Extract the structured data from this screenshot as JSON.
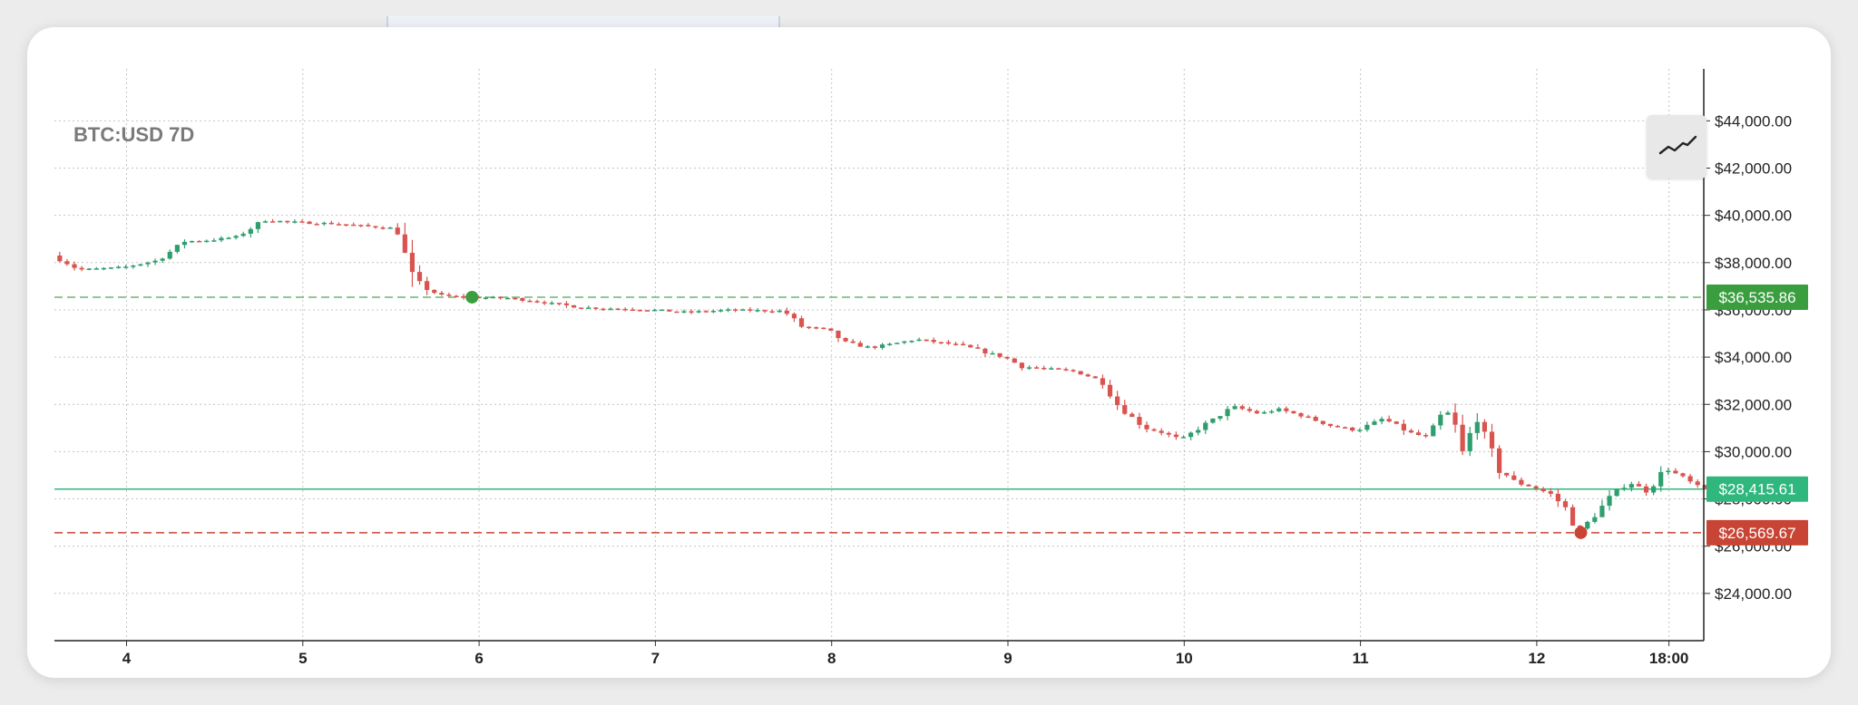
{
  "colors": {
    "up": "#2e9e6e",
    "down": "#d9534f",
    "current_line": "#2fb77e",
    "high_tag": "#3a9e3f",
    "current_tag": "#2fb77e",
    "low_tag": "#c84535"
  },
  "chart_type_button": {
    "icon": "line-chart-icon"
  },
  "chart_data": {
    "type": "candlestick",
    "title": "BTC:USD 7D",
    "x_ticks": [
      "4",
      "5",
      "6",
      "7",
      "8",
      "9",
      "10",
      "11",
      "12",
      "18:00"
    ],
    "y_ticks": [
      "$24,000.00",
      "$26,000.00",
      "$28,000.00",
      "$30,000.00",
      "$32,000.00",
      "$34,000.00",
      "$36,000.00",
      "$38,000.00",
      "$40,000.00",
      "$42,000.00",
      "$44,000.00"
    ],
    "ylim": [
      22000,
      46200
    ],
    "y_axis_side": "right",
    "grid": true,
    "reference_lines": [
      {
        "label": "$36,535.86",
        "value": 36535.86,
        "style": "dashed",
        "kind": "high"
      },
      {
        "label": "$28,415.61",
        "value": 28415.61,
        "style": "solid",
        "kind": "current"
      },
      {
        "label": "$26,569.67",
        "value": 26569.67,
        "style": "dashed",
        "kind": "low"
      }
    ],
    "markers": [
      {
        "day": 5.96,
        "value": 36535.86,
        "kind": "high"
      },
      {
        "day": 12.25,
        "value": 26569.67,
        "kind": "low"
      }
    ],
    "price_path": [
      [
        3.6,
        38300
      ],
      [
        3.75,
        37700
      ],
      [
        4.0,
        37800
      ],
      [
        4.2,
        38100
      ],
      [
        4.35,
        38900
      ],
      [
        4.5,
        38950
      ],
      [
        4.65,
        39100
      ],
      [
        4.8,
        39800
      ],
      [
        5.0,
        39700
      ],
      [
        5.2,
        39650
      ],
      [
        5.45,
        39500
      ],
      [
        5.55,
        39450
      ],
      [
        5.65,
        37200
      ],
      [
        5.8,
        36600
      ],
      [
        5.96,
        36535
      ],
      [
        6.2,
        36500
      ],
      [
        6.4,
        36300
      ],
      [
        6.6,
        36100
      ],
      [
        6.8,
        36050
      ],
      [
        7.0,
        36000
      ],
      [
        7.2,
        35900
      ],
      [
        7.45,
        36000
      ],
      [
        7.75,
        35950
      ],
      [
        7.85,
        35300
      ],
      [
        8.0,
        35150
      ],
      [
        8.1,
        34600
      ],
      [
        8.25,
        34400
      ],
      [
        8.5,
        34750
      ],
      [
        8.75,
        34500
      ],
      [
        8.9,
        34200
      ],
      [
        9.0,
        34000
      ],
      [
        9.1,
        33600
      ],
      [
        9.25,
        33500
      ],
      [
        9.4,
        33400
      ],
      [
        9.55,
        33000
      ],
      [
        9.65,
        31900
      ],
      [
        9.8,
        31000
      ],
      [
        9.9,
        30800
      ],
      [
        10.0,
        30500
      ],
      [
        10.15,
        31200
      ],
      [
        10.3,
        31900
      ],
      [
        10.45,
        31600
      ],
      [
        10.55,
        31800
      ],
      [
        10.7,
        31500
      ],
      [
        10.85,
        31100
      ],
      [
        11.0,
        30900
      ],
      [
        11.15,
        31400
      ],
      [
        11.3,
        30800
      ],
      [
        11.4,
        30600
      ],
      [
        11.5,
        31800
      ],
      [
        11.55,
        31300
      ],
      [
        11.6,
        29900
      ],
      [
        11.68,
        31500
      ],
      [
        11.8,
        29300
      ],
      [
        11.9,
        28700
      ],
      [
        12.0,
        28500
      ],
      [
        12.1,
        28200
      ],
      [
        12.2,
        27500
      ],
      [
        12.25,
        26569
      ],
      [
        12.35,
        27300
      ],
      [
        12.45,
        28200
      ],
      [
        12.55,
        28700
      ],
      [
        12.65,
        28300
      ],
      [
        12.75,
        29300
      ],
      [
        12.85,
        28900
      ],
      [
        12.95,
        28415
      ]
    ]
  }
}
